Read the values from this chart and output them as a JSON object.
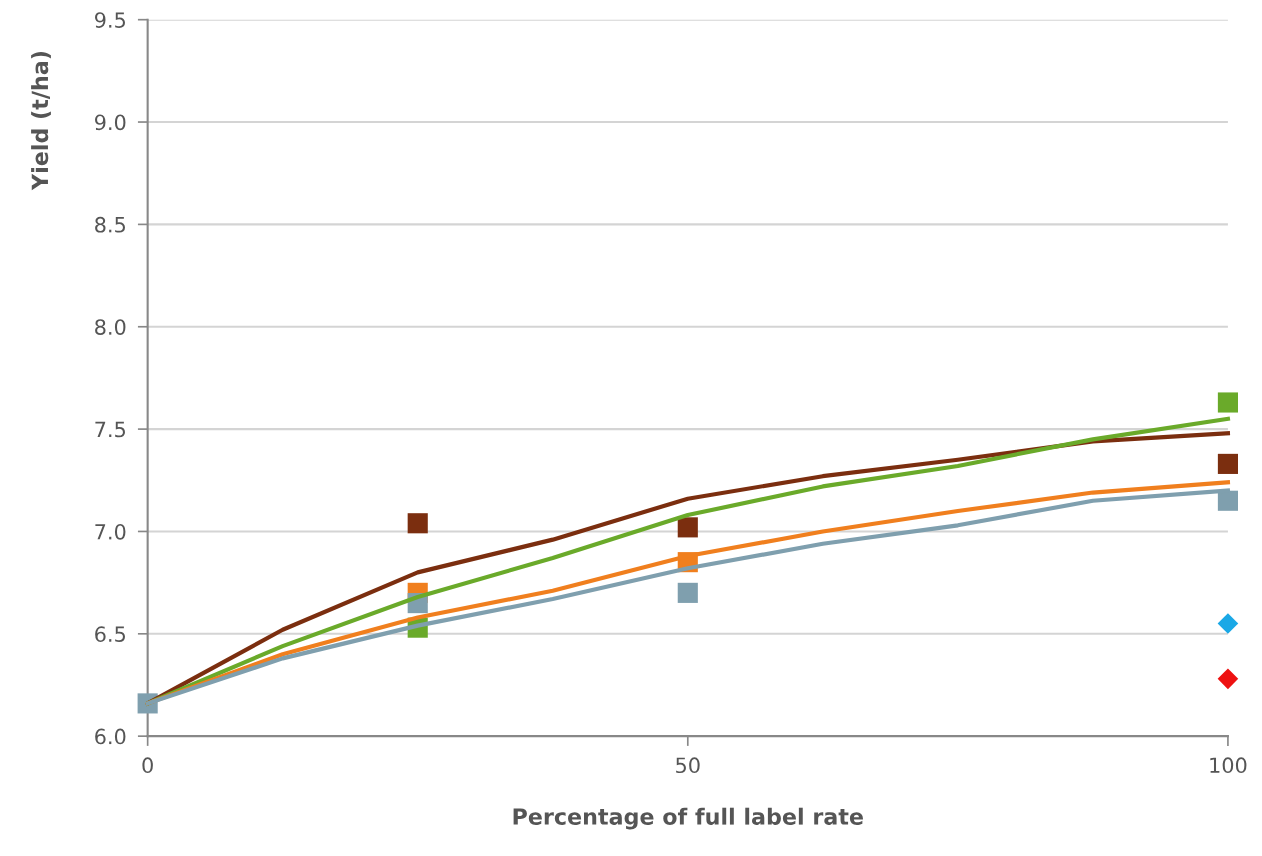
{
  "chart_data": {
    "type": "scatter",
    "xlabel": "Percentage of full label rate",
    "ylabel": "Yield (t/ha)",
    "xlim": [
      0,
      100
    ],
    "xticks": [
      0,
      50,
      100
    ],
    "ylim": [
      6.0,
      9.5
    ],
    "yticks": [
      {
        "value": 6.0,
        "label": "6.0"
      },
      {
        "value": 6.5,
        "label": "6.5"
      },
      {
        "value": 7.0,
        "label": "7.0"
      },
      {
        "value": 7.5,
        "label": "7.5"
      },
      {
        "value": 8.0,
        "label": "8.0"
      },
      {
        "value": 8.5,
        "label": "8.5"
      },
      {
        "value": 9.0,
        "label": "9.0"
      },
      {
        "value": 9.5,
        "label": "9.5"
      }
    ],
    "grid": "y",
    "marker": "square",
    "series": [
      {
        "type": "line",
        "color": "#7b2e0f",
        "marker": "none",
        "x": [
          0,
          12.5,
          25,
          37.5,
          50,
          62.5,
          75,
          87.5,
          100
        ],
        "values": [
          6.16,
          6.52,
          6.8,
          6.96,
          7.16,
          7.27,
          7.35,
          7.44,
          7.48
        ]
      },
      {
        "type": "line",
        "color": "#6aaa2a",
        "marker": "none",
        "x": [
          0,
          12.5,
          25,
          37.5,
          50,
          62.5,
          75,
          87.5,
          100
        ],
        "values": [
          6.16,
          6.44,
          6.68,
          6.87,
          7.08,
          7.22,
          7.32,
          7.45,
          7.55
        ]
      },
      {
        "type": "line",
        "color": "#f07f1e",
        "marker": "none",
        "x": [
          0,
          12.5,
          25,
          37.5,
          50,
          62.5,
          75,
          87.5,
          100
        ],
        "values": [
          6.16,
          6.4,
          6.58,
          6.71,
          6.88,
          7.0,
          7.1,
          7.19,
          7.24
        ]
      },
      {
        "type": "line",
        "color": "#7f9fae",
        "marker": "none",
        "x": [
          0,
          12.5,
          25,
          37.5,
          50,
          62.5,
          75,
          87.5,
          100
        ],
        "values": [
          6.16,
          6.38,
          6.54,
          6.67,
          6.82,
          6.94,
          7.03,
          7.15,
          7.2
        ]
      },
      {
        "color": "#7b2e0f",
        "x": [
          25,
          50,
          100
        ],
        "values": [
          7.04,
          7.02,
          7.33
        ]
      },
      {
        "color": "#6aaa2a",
        "x": [
          25,
          100
        ],
        "values": [
          6.53,
          7.63
        ]
      },
      {
        "color": "#f07f1e",
        "x": [
          25,
          50
        ],
        "values": [
          6.7,
          6.85
        ]
      },
      {
        "color": "#7f9fae",
        "x": [
          0,
          25,
          50,
          100
        ],
        "values": [
          6.16,
          6.65,
          6.7,
          7.15
        ]
      },
      {
        "color": "#1aa8e6",
        "marker": "diamond",
        "x": [
          100
        ],
        "values": [
          6.55
        ]
      },
      {
        "color": "#ee1111",
        "marker": "diamond",
        "x": [
          100
        ],
        "values": [
          6.28
        ]
      }
    ]
  }
}
